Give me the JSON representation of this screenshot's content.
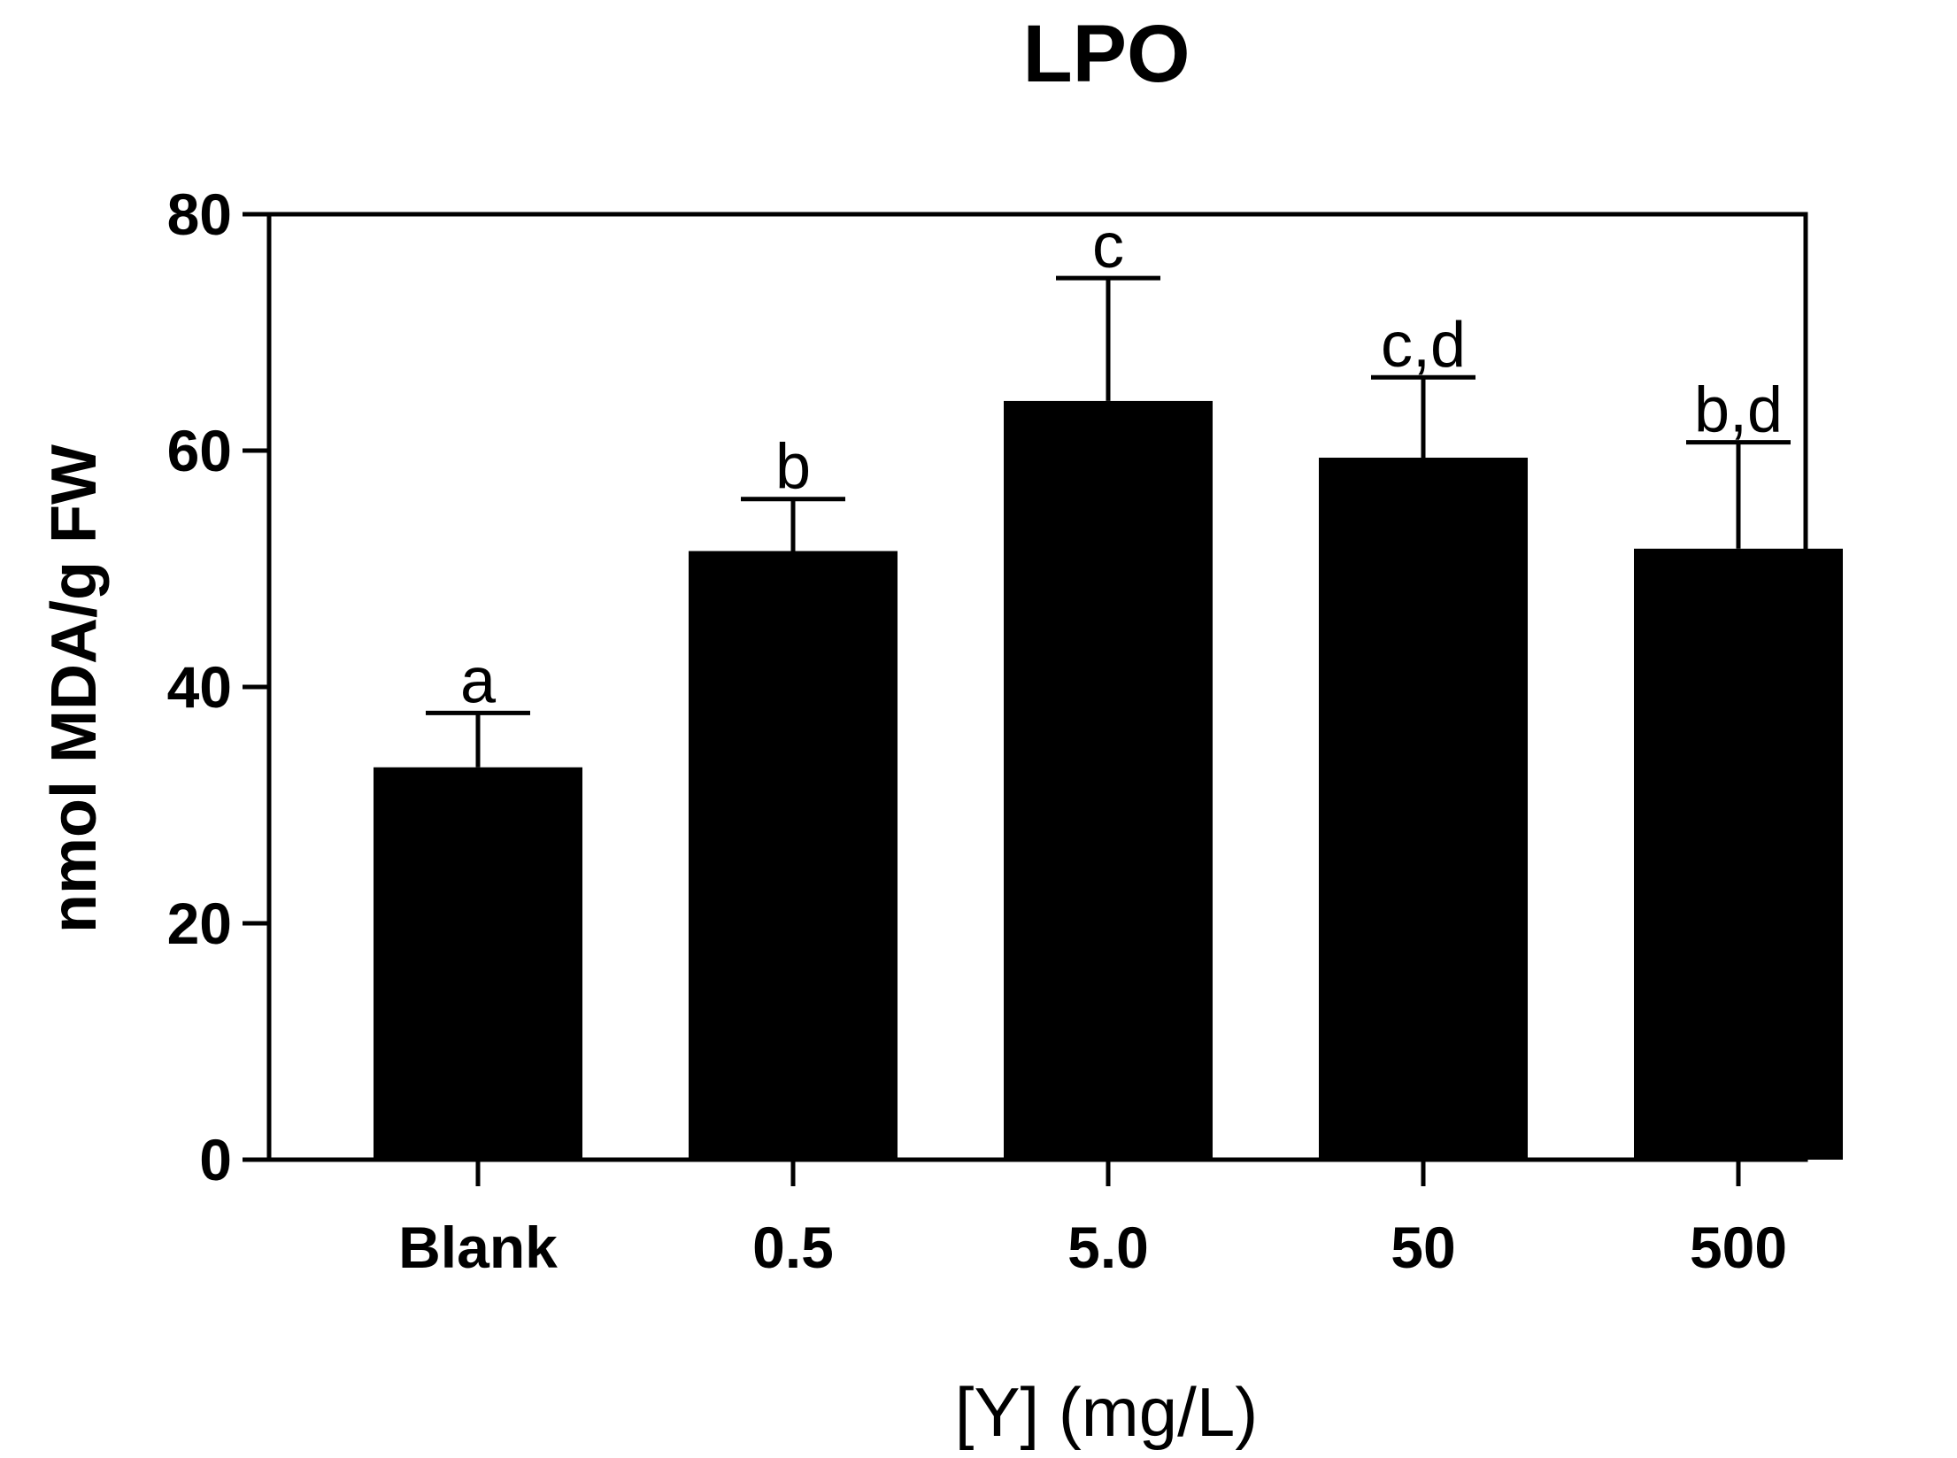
{
  "chart_data": {
    "type": "bar",
    "title": "LPO",
    "xlabel": "[Y] (mg/L)",
    "ylabel": "nmol MDA/g FW",
    "categories": [
      "Blank",
      "0.5",
      "5.0",
      "50",
      "500"
    ],
    "values": [
      33.2,
      51.5,
      64.2,
      59.4,
      51.7
    ],
    "error": [
      4.6,
      4.4,
      10.4,
      6.8,
      9.0
    ],
    "significance": [
      "a",
      "b",
      "c",
      "c,d",
      "b,d"
    ],
    "ylim": [
      0,
      80
    ],
    "yticks": [
      0,
      20,
      40,
      60,
      80
    ],
    "grid": false,
    "bar_color": "#000000"
  }
}
